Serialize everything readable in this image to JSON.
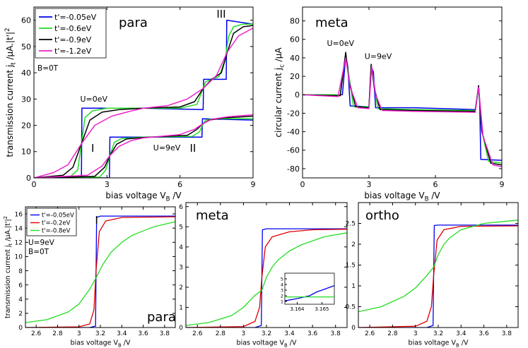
{
  "colors": {
    "blue": "#0000ee",
    "green": "#22dd22",
    "black": "#000000",
    "magenta": "#ee22cc",
    "red": "#dd0000"
  },
  "chart_data": [
    {
      "id": "top-left",
      "type": "line",
      "title": "para",
      "xlabel": "bias voltage V_B /V",
      "ylabel": "transmission current j_t /μA.|t'|^2",
      "xlim": [
        0,
        9
      ],
      "ylim": [
        0,
        65
      ],
      "xticks": [
        0,
        3,
        6,
        9
      ],
      "yticks": [
        0,
        10,
        20,
        30,
        40,
        50,
        60
      ],
      "legend": {
        "position": "top-left",
        "entries": [
          "t'=-0.05eV",
          "t'=-0.6eV",
          "t'=-0.9eV",
          "t'=-1.2eV"
        ],
        "note": "B=0T"
      },
      "annotations": [
        {
          "text": "U=0eV",
          "x": 1.9,
          "y": 29
        },
        {
          "text": "U=9eV",
          "x": 4.9,
          "y": 10.5
        },
        {
          "text": "I",
          "x": 2.35,
          "y": 10
        },
        {
          "text": "II",
          "x": 6.4,
          "y": 10
        },
        {
          "text": "III",
          "x": 7.5,
          "y": 61
        }
      ],
      "series": [
        {
          "name": "t'=-0.05eV",
          "color_key": "blue",
          "curves": [
            {
              "x": [
                0,
                1.95,
                1.97,
                4.5,
                6.95,
                6.97,
                7.9,
                7.92,
                9
              ],
              "y": [
                0,
                0,
                26.5,
                26.5,
                26,
                37.5,
                37.5,
                60,
                58.5
              ]
            },
            {
              "x": [
                0,
                2.8,
                3.1,
                3.12,
                4.5,
                6.9,
                6.92,
                9
              ],
              "y": [
                0,
                0,
                0,
                15.5,
                15.5,
                15.5,
                22.5,
                22
              ]
            }
          ]
        },
        {
          "name": "t'=-0.6eV",
          "color_key": "green",
          "curves": [
            {
              "x": [
                0,
                1.5,
                1.8,
                1.95,
                2.1,
                2.4,
                3,
                4.5,
                6,
                6.7,
                6.9,
                7.05,
                7.3,
                7.6,
                7.85,
                8.0,
                8.2,
                8.6,
                9
              ],
              "y": [
                0,
                0.5,
                3,
                13,
                23,
                25.5,
                26.5,
                26.5,
                26.5,
                28,
                33,
                36.5,
                37.5,
                38.5,
                45,
                54,
                57.5,
                58.5,
                58.5
              ]
            },
            {
              "x": [
                0,
                2.7,
                2.95,
                3.12,
                3.3,
                3.6,
                4.5,
                6.5,
                6.8,
                6.92,
                7.05,
                7.4,
                9
              ],
              "y": [
                0,
                0.3,
                3,
                8.5,
                13.5,
                15,
                15.5,
                15.8,
                17.5,
                20,
                22,
                22.5,
                22.5
              ]
            }
          ]
        },
        {
          "name": "t'=-0.9eV",
          "color_key": "black",
          "curves": [
            {
              "x": [
                0,
                1.2,
                1.6,
                1.95,
                2.3,
                2.8,
                3.5,
                4.5,
                6,
                6.6,
                6.95,
                7.3,
                7.7,
                7.95,
                8.2,
                8.6,
                9
              ],
              "y": [
                0,
                1,
                4,
                13,
                22,
                25,
                26,
                26.5,
                27,
                29,
                34,
                37.5,
                40,
                48,
                55,
                57.5,
                58
              ]
            },
            {
              "x": [
                0,
                2.5,
                2.9,
                3.12,
                3.4,
                3.8,
                4.5,
                6.3,
                6.7,
                6.92,
                7.2,
                7.8,
                9
              ],
              "y": [
                0,
                0.6,
                4,
                8.5,
                12.8,
                14.8,
                15.4,
                16.2,
                18.5,
                20.5,
                22,
                22.8,
                23.5
              ]
            }
          ]
        },
        {
          "name": "t'=-1.2eV",
          "color_key": "magenta",
          "curves": [
            {
              "x": [
                0,
                0.8,
                1.4,
                1.95,
                2.5,
                3.2,
                4,
                4.5,
                5.5,
                6.3,
                6.95,
                7.5,
                7.95,
                8.4,
                9
              ],
              "y": [
                0,
                2,
                5,
                13,
                20,
                23.5,
                25.5,
                26.5,
                27.5,
                30,
                34,
                39,
                48,
                54,
                57
              ]
            },
            {
              "x": [
                0,
                2.2,
                2.8,
                3.12,
                3.5,
                4,
                4.5,
                6,
                6.6,
                6.92,
                7.3,
                8,
                9
              ],
              "y": [
                0,
                1,
                4.5,
                8.5,
                12,
                14.2,
                15.2,
                16.5,
                18.5,
                20.5,
                22.3,
                23.3,
                24
              ]
            }
          ]
        }
      ]
    },
    {
      "id": "top-right",
      "type": "line",
      "title": "meta",
      "xlabel": "bias voltage V_B /V",
      "ylabel": "circular current j_c /μA",
      "xlim": [
        0,
        9
      ],
      "ylim": [
        -90,
        95
      ],
      "xticks": [
        0,
        3,
        6,
        9
      ],
      "yticks": [
        -80,
        -60,
        -40,
        -20,
        0,
        20,
        40,
        60,
        80
      ],
      "annotations": [
        {
          "text": "U=0eV",
          "x": 1.1,
          "y": 53
        },
        {
          "text": "U=9eV",
          "x": 2.8,
          "y": 39
        }
      ],
      "series": [
        {
          "name": "t'=-0.05eV",
          "color_key": "blue",
          "values_x": [
            0,
            1.8,
            1.95,
            2.05,
            2.15,
            3.0,
            3.1,
            3.2,
            3.3,
            5,
            7.8,
            7.95,
            8.0,
            8.05,
            9
          ],
          "values_y": [
            0,
            0,
            42,
            30,
            -12,
            -13,
            30,
            25,
            -14,
            -14,
            -16,
            8,
            -10,
            -70,
            -71
          ]
        },
        {
          "name": "t'=-0.6eV",
          "color_key": "green",
          "values_x": [
            0,
            1.7,
            1.95,
            2.1,
            2.3,
            3.0,
            3.1,
            3.25,
            3.4,
            5,
            7.8,
            7.95,
            8.1,
            8.4,
            9
          ],
          "values_y": [
            0,
            0,
            44,
            20,
            -13,
            -13,
            32,
            10,
            -15,
            -16,
            -17,
            9,
            -40,
            -72,
            -74
          ]
        },
        {
          "name": "t'=-0.9eV",
          "color_key": "black",
          "values_x": [
            0,
            1.7,
            1.95,
            2.1,
            2.4,
            3.0,
            3.1,
            3.25,
            3.5,
            5,
            7.8,
            7.95,
            8.1,
            8.5,
            9
          ],
          "values_y": [
            0,
            -1,
            46,
            15,
            -13,
            -14,
            33,
            6,
            -16,
            -17,
            -18,
            10,
            -40,
            -74,
            -76
          ]
        },
        {
          "name": "t'=-1.2eV",
          "color_key": "magenta",
          "values_x": [
            0,
            1.6,
            1.95,
            2.15,
            2.5,
            3.0,
            3.12,
            3.3,
            3.6,
            5,
            7.8,
            7.95,
            8.15,
            8.6,
            9
          ],
          "values_y": [
            0,
            -2,
            40,
            8,
            -14,
            -15,
            31,
            0,
            -17,
            -18,
            -19,
            8,
            -45,
            -76,
            -78
          ]
        }
      ]
    },
    {
      "id": "bottom-left",
      "type": "line",
      "title": "para",
      "xlabel": "bias voltage V_B /V",
      "ylabel": "transmission current j_t /μA.|t'|^2",
      "xlim": [
        2.5,
        3.9
      ],
      "ylim": [
        0,
        17
      ],
      "xticks": [
        2.6,
        2.8,
        3,
        3.2,
        3.4,
        3.6,
        3.8
      ],
      "yticks": [
        0,
        2,
        4,
        6,
        8,
        10,
        12,
        14,
        16
      ],
      "legend": {
        "position": "top-left",
        "entries": [
          "t'=-0.05eV",
          "t'=-0.2eV",
          "t'=-0.8eV"
        ],
        "note_lines": [
          "U=9eV",
          "B=0T"
        ]
      },
      "annotations": [
        {
          "text": "I",
          "x": 3.15,
          "y": 14.6
        }
      ],
      "series": [
        {
          "name": "t'=-0.05eV",
          "color_key": "blue",
          "values_x": [
            2.5,
            3.1,
            3.155,
            3.16,
            3.165,
            3.2,
            3.9
          ],
          "values_y": [
            0,
            0,
            0.2,
            7.8,
            15.5,
            15.7,
            15.7
          ]
        },
        {
          "name": "t'=-0.2eV",
          "color_key": "red",
          "values_x": [
            2.5,
            3.0,
            3.1,
            3.14,
            3.16,
            3.19,
            3.25,
            3.4,
            3.9
          ],
          "values_y": [
            0,
            0.1,
            0.5,
            2.5,
            8,
            13.5,
            15,
            15.5,
            15.6
          ]
        },
        {
          "name": "t'=-0.8eV",
          "color_key": "green",
          "values_x": [
            2.5,
            2.7,
            2.9,
            3.0,
            3.1,
            3.16,
            3.22,
            3.3,
            3.4,
            3.5,
            3.7,
            3.9
          ],
          "values_y": [
            0.7,
            1.1,
            2.2,
            3.3,
            5.4,
            7.0,
            8.8,
            10.6,
            12,
            13,
            14.2,
            14.9
          ]
        }
      ]
    },
    {
      "id": "bottom-middle",
      "type": "line",
      "title": "meta",
      "xlabel": "bias voltage V_B /V",
      "xlim": [
        2.5,
        3.9
      ],
      "ylim": [
        0,
        6.2
      ],
      "xticks": [
        2.6,
        2.8,
        3,
        3.2,
        3.4,
        3.6,
        3.8
      ],
      "yticks": [
        0,
        1,
        2,
        3,
        4,
        5,
        6
      ],
      "series": [
        {
          "name": "t'=-0.05eV",
          "color_key": "blue",
          "values_x": [
            2.5,
            3.1,
            3.155,
            3.16,
            3.165,
            3.2,
            3.9
          ],
          "values_y": [
            0,
            0,
            0.1,
            2.5,
            4.85,
            4.9,
            4.9
          ]
        },
        {
          "name": "t'=-0.2eV",
          "color_key": "red",
          "values_x": [
            2.5,
            3.0,
            3.1,
            3.14,
            3.16,
            3.19,
            3.25,
            3.4,
            3.6,
            3.9
          ],
          "values_y": [
            0,
            0.05,
            0.3,
            1.0,
            2.5,
            4.0,
            4.5,
            4.75,
            4.85,
            4.88
          ]
        },
        {
          "name": "t'=-0.8eV",
          "color_key": "green",
          "values_x": [
            2.5,
            2.7,
            2.9,
            3.0,
            3.1,
            3.16,
            3.2,
            3.25,
            3.3,
            3.4,
            3.5,
            3.7,
            3.9
          ],
          "values_y": [
            0.1,
            0.25,
            0.6,
            1.0,
            1.6,
            1.85,
            2.5,
            3.0,
            3.35,
            3.8,
            4.1,
            4.5,
            4.7
          ]
        }
      ],
      "inset": {
        "xlim": [
          3.1635,
          3.1655
        ],
        "ylim": [
          0.5,
          6
        ],
        "xticks": [
          3.164,
          3.165
        ],
        "yticks": [
          1,
          2,
          3,
          4,
          5
        ],
        "series": [
          {
            "name": "t'=-0.05eV",
            "color_key": "blue",
            "values_x": [
              3.1635,
              3.164,
              3.1645,
              3.1648,
              3.165,
              3.1655
            ],
            "values_y": [
              1.1,
              1.5,
              2.0,
              2.7,
              3.0,
              3.8
            ]
          },
          {
            "name": "t'=-0.8eV",
            "color_key": "green",
            "values_x": [
              3.1635,
              3.1655
            ],
            "values_y": [
              1.8,
              1.8
            ]
          }
        ]
      }
    },
    {
      "id": "bottom-right",
      "type": "line",
      "title": "ortho",
      "xlabel": "bias voltage V_B /V",
      "xlim": [
        2.5,
        3.9
      ],
      "ylim": [
        0,
        3
      ],
      "xticks": [
        2.6,
        2.8,
        3,
        3.2,
        3.4,
        3.6,
        3.8
      ],
      "yticks": [
        0,
        0.5,
        1,
        1.5,
        2,
        2.5
      ],
      "series": [
        {
          "name": "t'=-0.05eV",
          "color_key": "blue",
          "values_x": [
            2.5,
            3.1,
            3.155,
            3.16,
            3.165,
            3.2,
            3.9
          ],
          "values_y": [
            0,
            0,
            0.05,
            1.25,
            2.45,
            2.46,
            2.46
          ]
        },
        {
          "name": "t'=-0.2eV",
          "color_key": "red",
          "values_x": [
            2.5,
            3.0,
            3.1,
            3.14,
            3.16,
            3.19,
            3.25,
            3.4,
            3.9
          ],
          "values_y": [
            0,
            0.03,
            0.15,
            0.5,
            1.25,
            2.1,
            2.35,
            2.43,
            2.44
          ]
        },
        {
          "name": "t'=-0.8eV",
          "color_key": "green",
          "values_x": [
            2.5,
            2.7,
            2.9,
            3.0,
            3.1,
            3.16,
            3.2,
            3.25,
            3.3,
            3.4,
            3.6,
            3.9
          ],
          "values_y": [
            0.38,
            0.5,
            0.75,
            0.95,
            1.25,
            1.45,
            1.75,
            2.0,
            2.15,
            2.35,
            2.5,
            2.58
          ]
        }
      ]
    }
  ]
}
